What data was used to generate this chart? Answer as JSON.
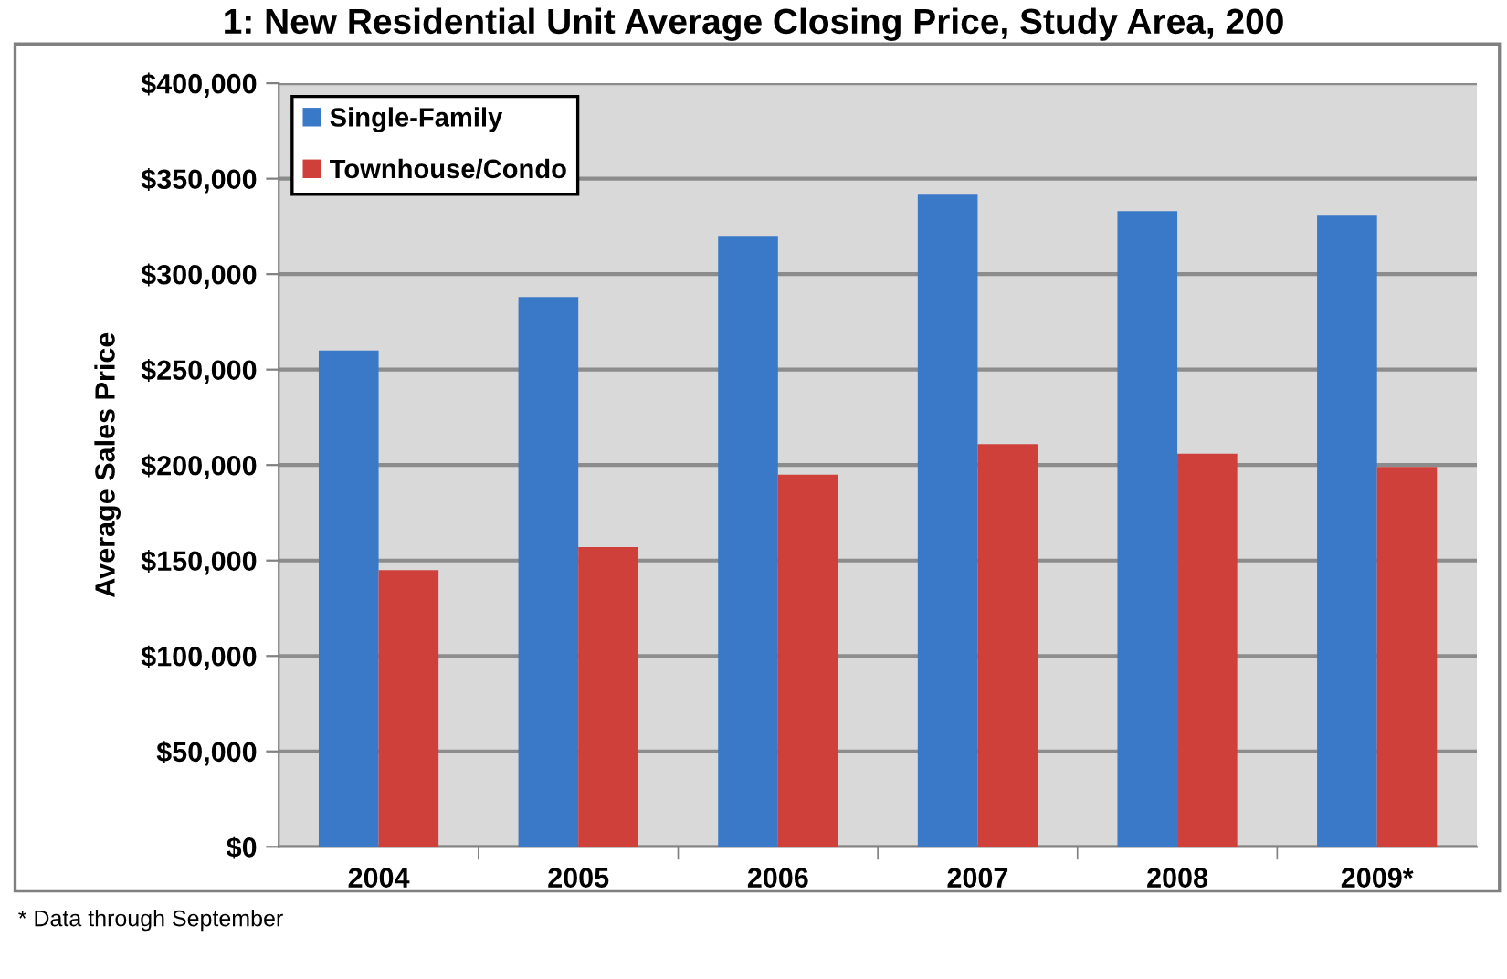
{
  "chart_data": {
    "type": "bar",
    "title": "1: New Residential Unit Average Closing Price, Study Area, 200",
    "ylabel": "Average Sales Price",
    "categories": [
      "2004",
      "2005",
      "2006",
      "2007",
      "2008",
      "2009*"
    ],
    "series": [
      {
        "name": "Single-Family",
        "color": "#3a78c8",
        "values": [
          260000,
          288000,
          320000,
          342000,
          333000,
          331000
        ]
      },
      {
        "name": "Townhouse/Condo",
        "color": "#d0403b",
        "values": [
          145000,
          157000,
          195000,
          211000,
          206000,
          199000
        ]
      }
    ],
    "ylim": [
      0,
      400000
    ],
    "yticks": [
      {
        "value": 0,
        "label": "$0"
      },
      {
        "value": 50000,
        "label": "$50,000"
      },
      {
        "value": 100000,
        "label": "$100,000"
      },
      {
        "value": 150000,
        "label": "$150,000"
      },
      {
        "value": 200000,
        "label": "$200,000"
      },
      {
        "value": 250000,
        "label": "$250,000"
      },
      {
        "value": 300000,
        "label": "$300,000"
      },
      {
        "value": 350000,
        "label": "$350,000"
      },
      {
        "value": 400000,
        "label": "$400,000"
      }
    ],
    "grid": "y",
    "legend": "top left",
    "annotations": [
      "* Data through September"
    ]
  }
}
